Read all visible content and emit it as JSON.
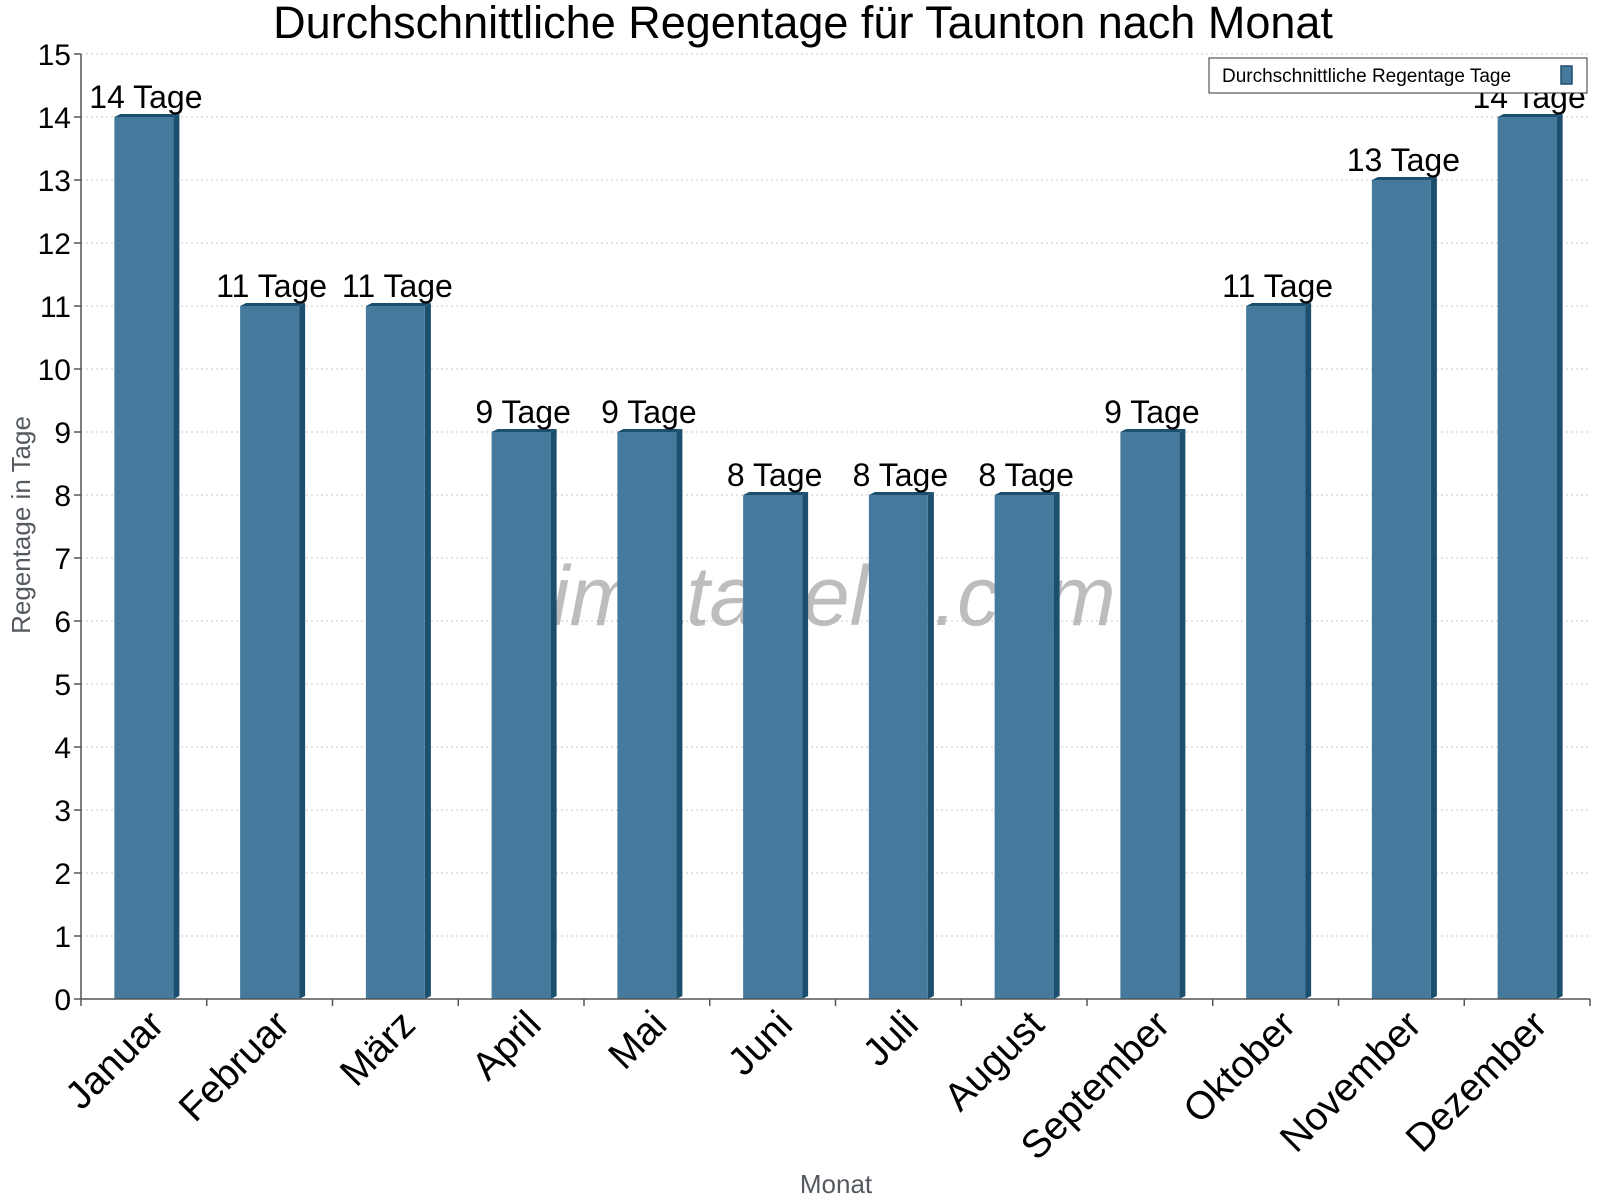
{
  "chart_data": {
    "type": "bar",
    "title": "Durchschnittliche Regentage für Taunton nach Monat",
    "xlabel": "Monat",
    "ylabel": "Regentage in Tage",
    "categories": [
      "Januar",
      "Februar",
      "März",
      "April",
      "Mai",
      "Juni",
      "Juli",
      "August",
      "September",
      "Oktober",
      "November",
      "Dezember"
    ],
    "series": [
      {
        "name": "Durchschnittliche Regentage Tage",
        "values": [
          14,
          11,
          11,
          9,
          9,
          8,
          8,
          8,
          9,
          11,
          13,
          14
        ],
        "labels": [
          "14 Tage",
          "11 Tage",
          "11 Tage",
          "9 Tage",
          "9 Tage",
          "8 Tage",
          "8 Tage",
          "8 Tage",
          "9 Tage",
          "11 Tage",
          "13 Tage",
          "14 Tage"
        ]
      }
    ],
    "ylim": [
      0,
      15
    ],
    "yticks": [
      0,
      1,
      2,
      3,
      4,
      5,
      6,
      7,
      8,
      9,
      10,
      11,
      12,
      13,
      14,
      15
    ],
    "grid": true,
    "legend_position": "top-right",
    "colors": {
      "bar": "#467a9c",
      "bar_side": "#1c4e6e",
      "grid": "#c8c8c8",
      "axis": "#555555"
    },
    "watermark": "klimatabelle.com"
  }
}
